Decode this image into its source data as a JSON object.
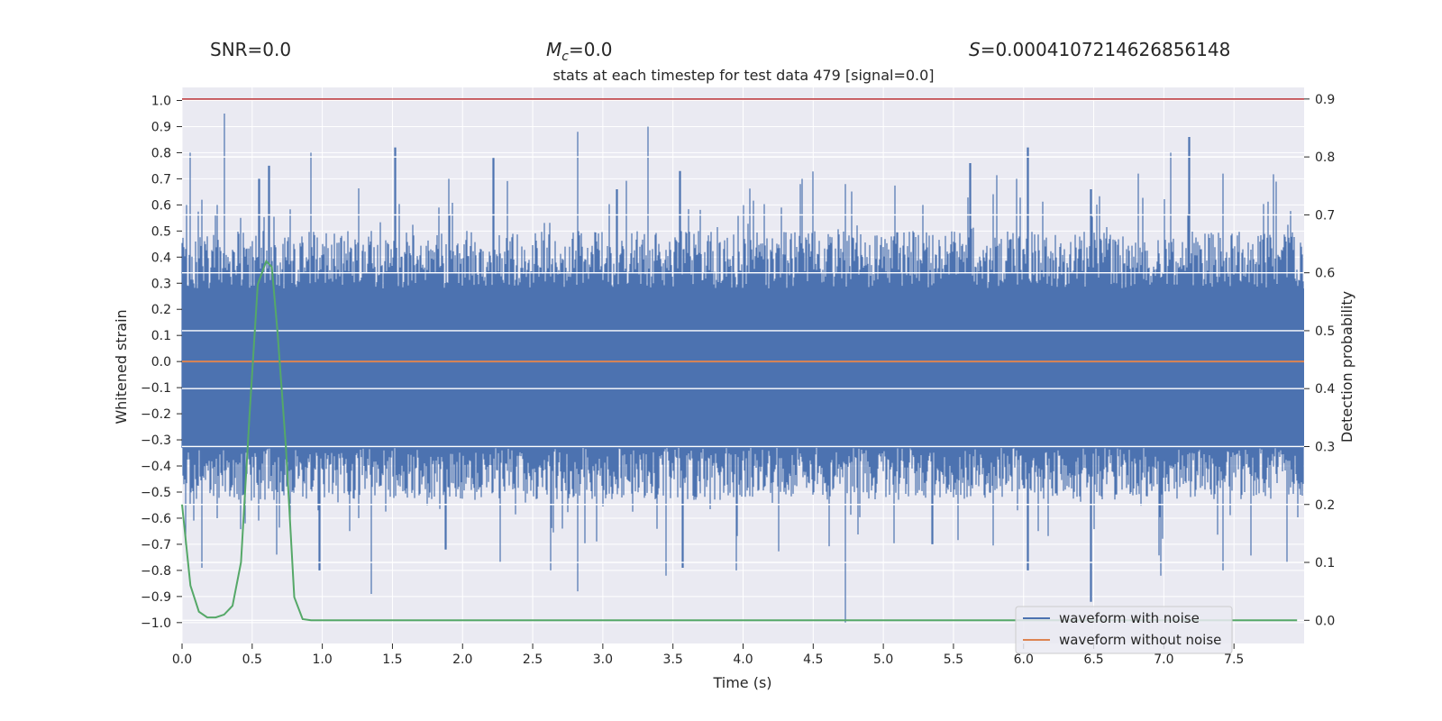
{
  "header": {
    "snr": "SNR=0.0",
    "mc_symbol": "M",
    "mc_sub": "c",
    "mc_value": "=0.0",
    "s_symbol": "S",
    "s_value": "=0.0004107214626856148"
  },
  "chart_data": {
    "type": "line",
    "title": "stats at each timestep for test data 479 [signal=0.0]",
    "xlabel": "Time (s)",
    "ylabel_left": "Whitened strain",
    "ylabel_right": "Detection probability",
    "xlim": [
      0.0,
      8.0
    ],
    "ylim_left": [
      -1.08,
      1.05
    ],
    "ylim_right": [
      -0.04,
      0.92
    ],
    "xticks": [
      "0.0",
      "0.5",
      "1.0",
      "1.5",
      "2.0",
      "2.5",
      "3.0",
      "3.5",
      "4.0",
      "4.5",
      "5.0",
      "5.5",
      "6.0",
      "6.5",
      "7.0",
      "7.5"
    ],
    "yticks_left": [
      "1.0",
      "0.9",
      "0.8",
      "0.7",
      "0.6",
      "0.5",
      "0.4",
      "0.3",
      "0.2",
      "0.1",
      "0.0",
      "−0.1",
      "−0.2",
      "−0.3",
      "−0.4",
      "−0.5",
      "−0.6",
      "−0.7",
      "−0.8",
      "−0.9",
      "−1.0"
    ],
    "yticks_right": [
      "0.9",
      "0.8",
      "0.7",
      "0.6",
      "0.5",
      "0.4",
      "0.3",
      "0.2",
      "0.1",
      "0.0"
    ],
    "grid": true,
    "legend_position": "lower-right",
    "legend": [
      "waveform with noise",
      "waveform without noise"
    ],
    "colors": {
      "noise": "#4c72b0",
      "clean": "#dd8452",
      "probability": "#55a868",
      "threshold": "#c44e52",
      "plot_bg": "#eaeaf2",
      "grid": "#ffffff"
    },
    "series": [
      {
        "name": "waveform with noise",
        "axis": "left",
        "description_values": "noise band between about -0.35 and 0.30, spikes from -1.0 to 0.95",
        "peaks_x": [
          0.03,
          0.06,
          0.14,
          0.25,
          0.3,
          0.42,
          0.55,
          0.62,
          0.92,
          1.35,
          1.52,
          1.9,
          2.22,
          2.82,
          3.1,
          3.32,
          3.55,
          4.42,
          4.73,
          5.28,
          5.62,
          5.95,
          6.03,
          6.48,
          6.82,
          7.05,
          7.18,
          7.42
        ],
        "peaks_y": [
          0.6,
          0.8,
          0.62,
          0.6,
          0.95,
          0.55,
          0.7,
          0.75,
          0.8,
          0.5,
          0.82,
          0.7,
          0.78,
          0.88,
          0.66,
          0.9,
          0.73,
          0.7,
          0.68,
          0.6,
          0.76,
          0.7,
          0.82,
          0.66,
          0.72,
          0.8,
          0.86,
          0.72
        ],
        "troughs_x": [
          0.06,
          0.14,
          0.25,
          0.45,
          0.68,
          0.98,
          1.35,
          1.88,
          2.27,
          2.63,
          2.82,
          3.45,
          3.57,
          3.95,
          4.73,
          5.35,
          6.03,
          6.48,
          6.98,
          7.42,
          7.88
        ],
        "troughs_y": [
          -0.55,
          -0.79,
          -0.6,
          -0.62,
          -0.5,
          -0.8,
          -0.89,
          -0.72,
          -0.77,
          -0.8,
          -0.88,
          -0.82,
          -0.79,
          -0.8,
          -1.0,
          -0.7,
          -0.8,
          -0.92,
          -0.82,
          -0.8,
          -0.77
        ]
      },
      {
        "name": "waveform without noise",
        "axis": "left",
        "x": [
          0.0,
          8.0
        ],
        "y": [
          0.0,
          0.0
        ]
      },
      {
        "axis": "right",
        "x": [
          0.0,
          0.06,
          0.12,
          0.18,
          0.24,
          0.3,
          0.36,
          0.42,
          0.48,
          0.54,
          0.6,
          0.64,
          0.68,
          0.74,
          0.8,
          0.86,
          0.92,
          1.0,
          7.95
        ],
        "y": [
          0.2,
          0.06,
          0.015,
          0.005,
          0.005,
          0.01,
          0.025,
          0.1,
          0.35,
          0.58,
          0.62,
          0.61,
          0.5,
          0.3,
          0.04,
          0.002,
          0.0,
          0.0,
          0.0
        ]
      },
      {
        "axis": "right",
        "x": [
          0.0,
          8.0
        ],
        "y": [
          0.9,
          0.9
        ]
      }
    ]
  }
}
